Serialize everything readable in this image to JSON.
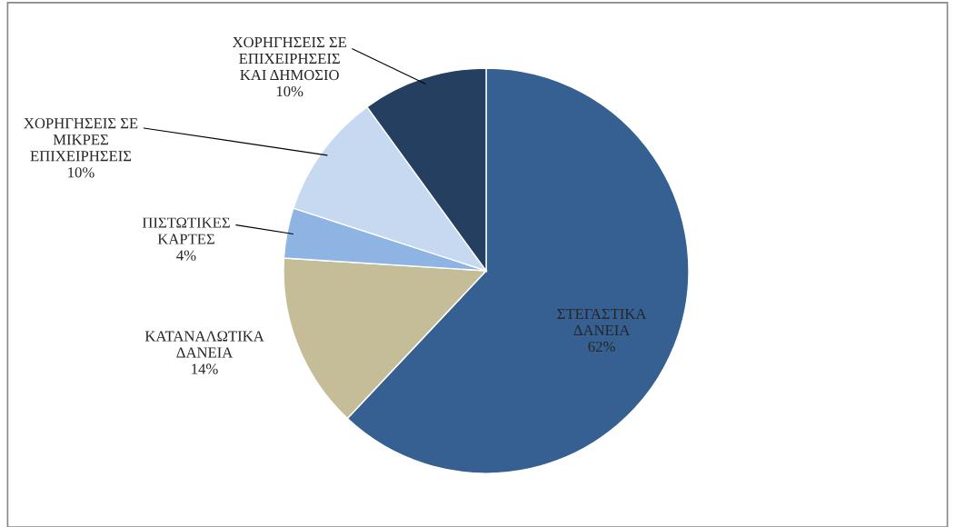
{
  "chart_data": {
    "type": "pie",
    "categories": [
      "ΣΤΕΓΑΣΤΙΚΑ\nΔΑΝΕΙΑ",
      "ΚΑΤΑΝΑΛΩΤΙΚΑ\nΔΑΝΕΙΑ",
      "ΠΙΣΤΩΤΙΚΕΣ\nΚΑΡΤΕΣ",
      "ΧΟΡΗΓΗΣΕΙΣ ΣΕ\nΜΙΚΡΕΣ\nΕΠΙΧΕΙΡΗΣΕΙΣ",
      "ΧΟΡΗΓΗΣΕΙΣ ΣΕ\nΕΠΙΧΕΙΡΗΣΕΙΣ\nΚΑΙ ΔΗΜΟΣΙΟ"
    ],
    "values": [
      62,
      14,
      4,
      10,
      10
    ],
    "colors": [
      "#366092",
      "#c4bd97",
      "#8db4e2",
      "#c6d9f1",
      "#243f60"
    ],
    "value_labels": [
      "62%",
      "14%",
      "4%",
      "10%",
      "10%"
    ]
  }
}
